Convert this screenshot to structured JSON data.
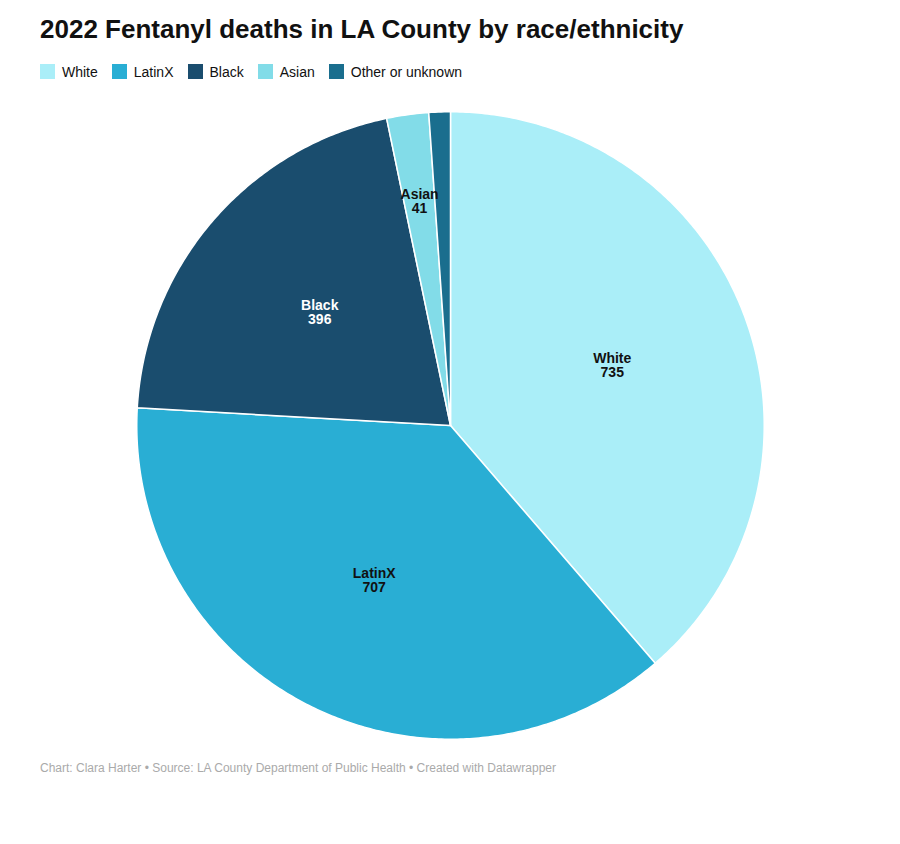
{
  "chart_data": {
    "type": "pie",
    "title": "2022 Fentanyl deaths in LA County by race/ethnicity",
    "categories": [
      "White",
      "LatinX",
      "Black",
      "Asian",
      "Other or unknown"
    ],
    "values": [
      735,
      707,
      396,
      41,
      21
    ],
    "colors": [
      "#aaeef8",
      "#29aed4",
      "#1a4d6e",
      "#82dce8",
      "#1a6e8e"
    ],
    "data_labels": true,
    "value_labels": [
      "735",
      "707",
      "396",
      "41",
      null
    ],
    "legend": "top",
    "caption": "Chart: Clara Harter • Source: LA County Department of Public Health • Created with Datawrapper"
  }
}
